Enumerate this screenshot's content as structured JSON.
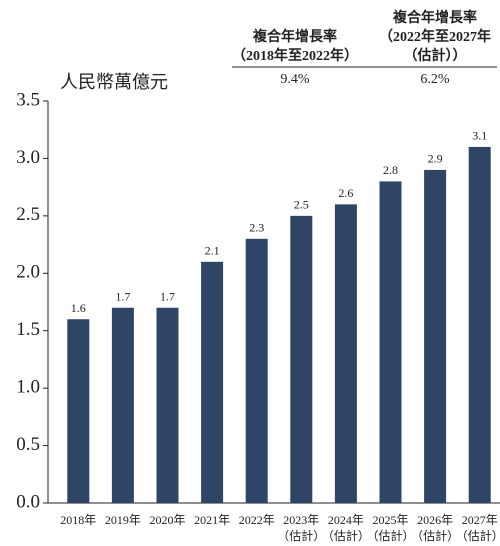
{
  "chart_data": {
    "type": "bar",
    "y_label": "人民幣萬億元",
    "cagr": [
      {
        "label_lines": [
          "複合年增長率",
          "（2018年至2022年）"
        ],
        "value": "9.4%"
      },
      {
        "label_lines": [
          "複合年增長率",
          "（2022年至2027年",
          "（估計））"
        ],
        "value": "6.2%"
      }
    ],
    "categories": [
      "2018年",
      "2019年",
      "2020年",
      "2021年",
      "2022年",
      "2023年",
      "2024年",
      "2025年",
      "2026年",
      "2027年"
    ],
    "category_notes": [
      null,
      null,
      null,
      null,
      null,
      "（估計）",
      "（估計）",
      "（估計）",
      "（估計）",
      "（估計）"
    ],
    "values": [
      1.6,
      1.7,
      1.7,
      2.1,
      2.3,
      2.5,
      2.6,
      2.8,
      2.9,
      3.1
    ],
    "color": "#2f4566",
    "ylim": [
      0,
      3.5
    ],
    "yticks": [
      {
        "value": 0,
        "label": "0.0"
      },
      0.5,
      {
        "value": 1,
        "label": "1.0"
      },
      1.5,
      {
        "value": 2,
        "label": "2.0"
      },
      2.5,
      {
        "value": 3,
        "label": "3.0"
      },
      3.5
    ],
    "grid": false
  }
}
